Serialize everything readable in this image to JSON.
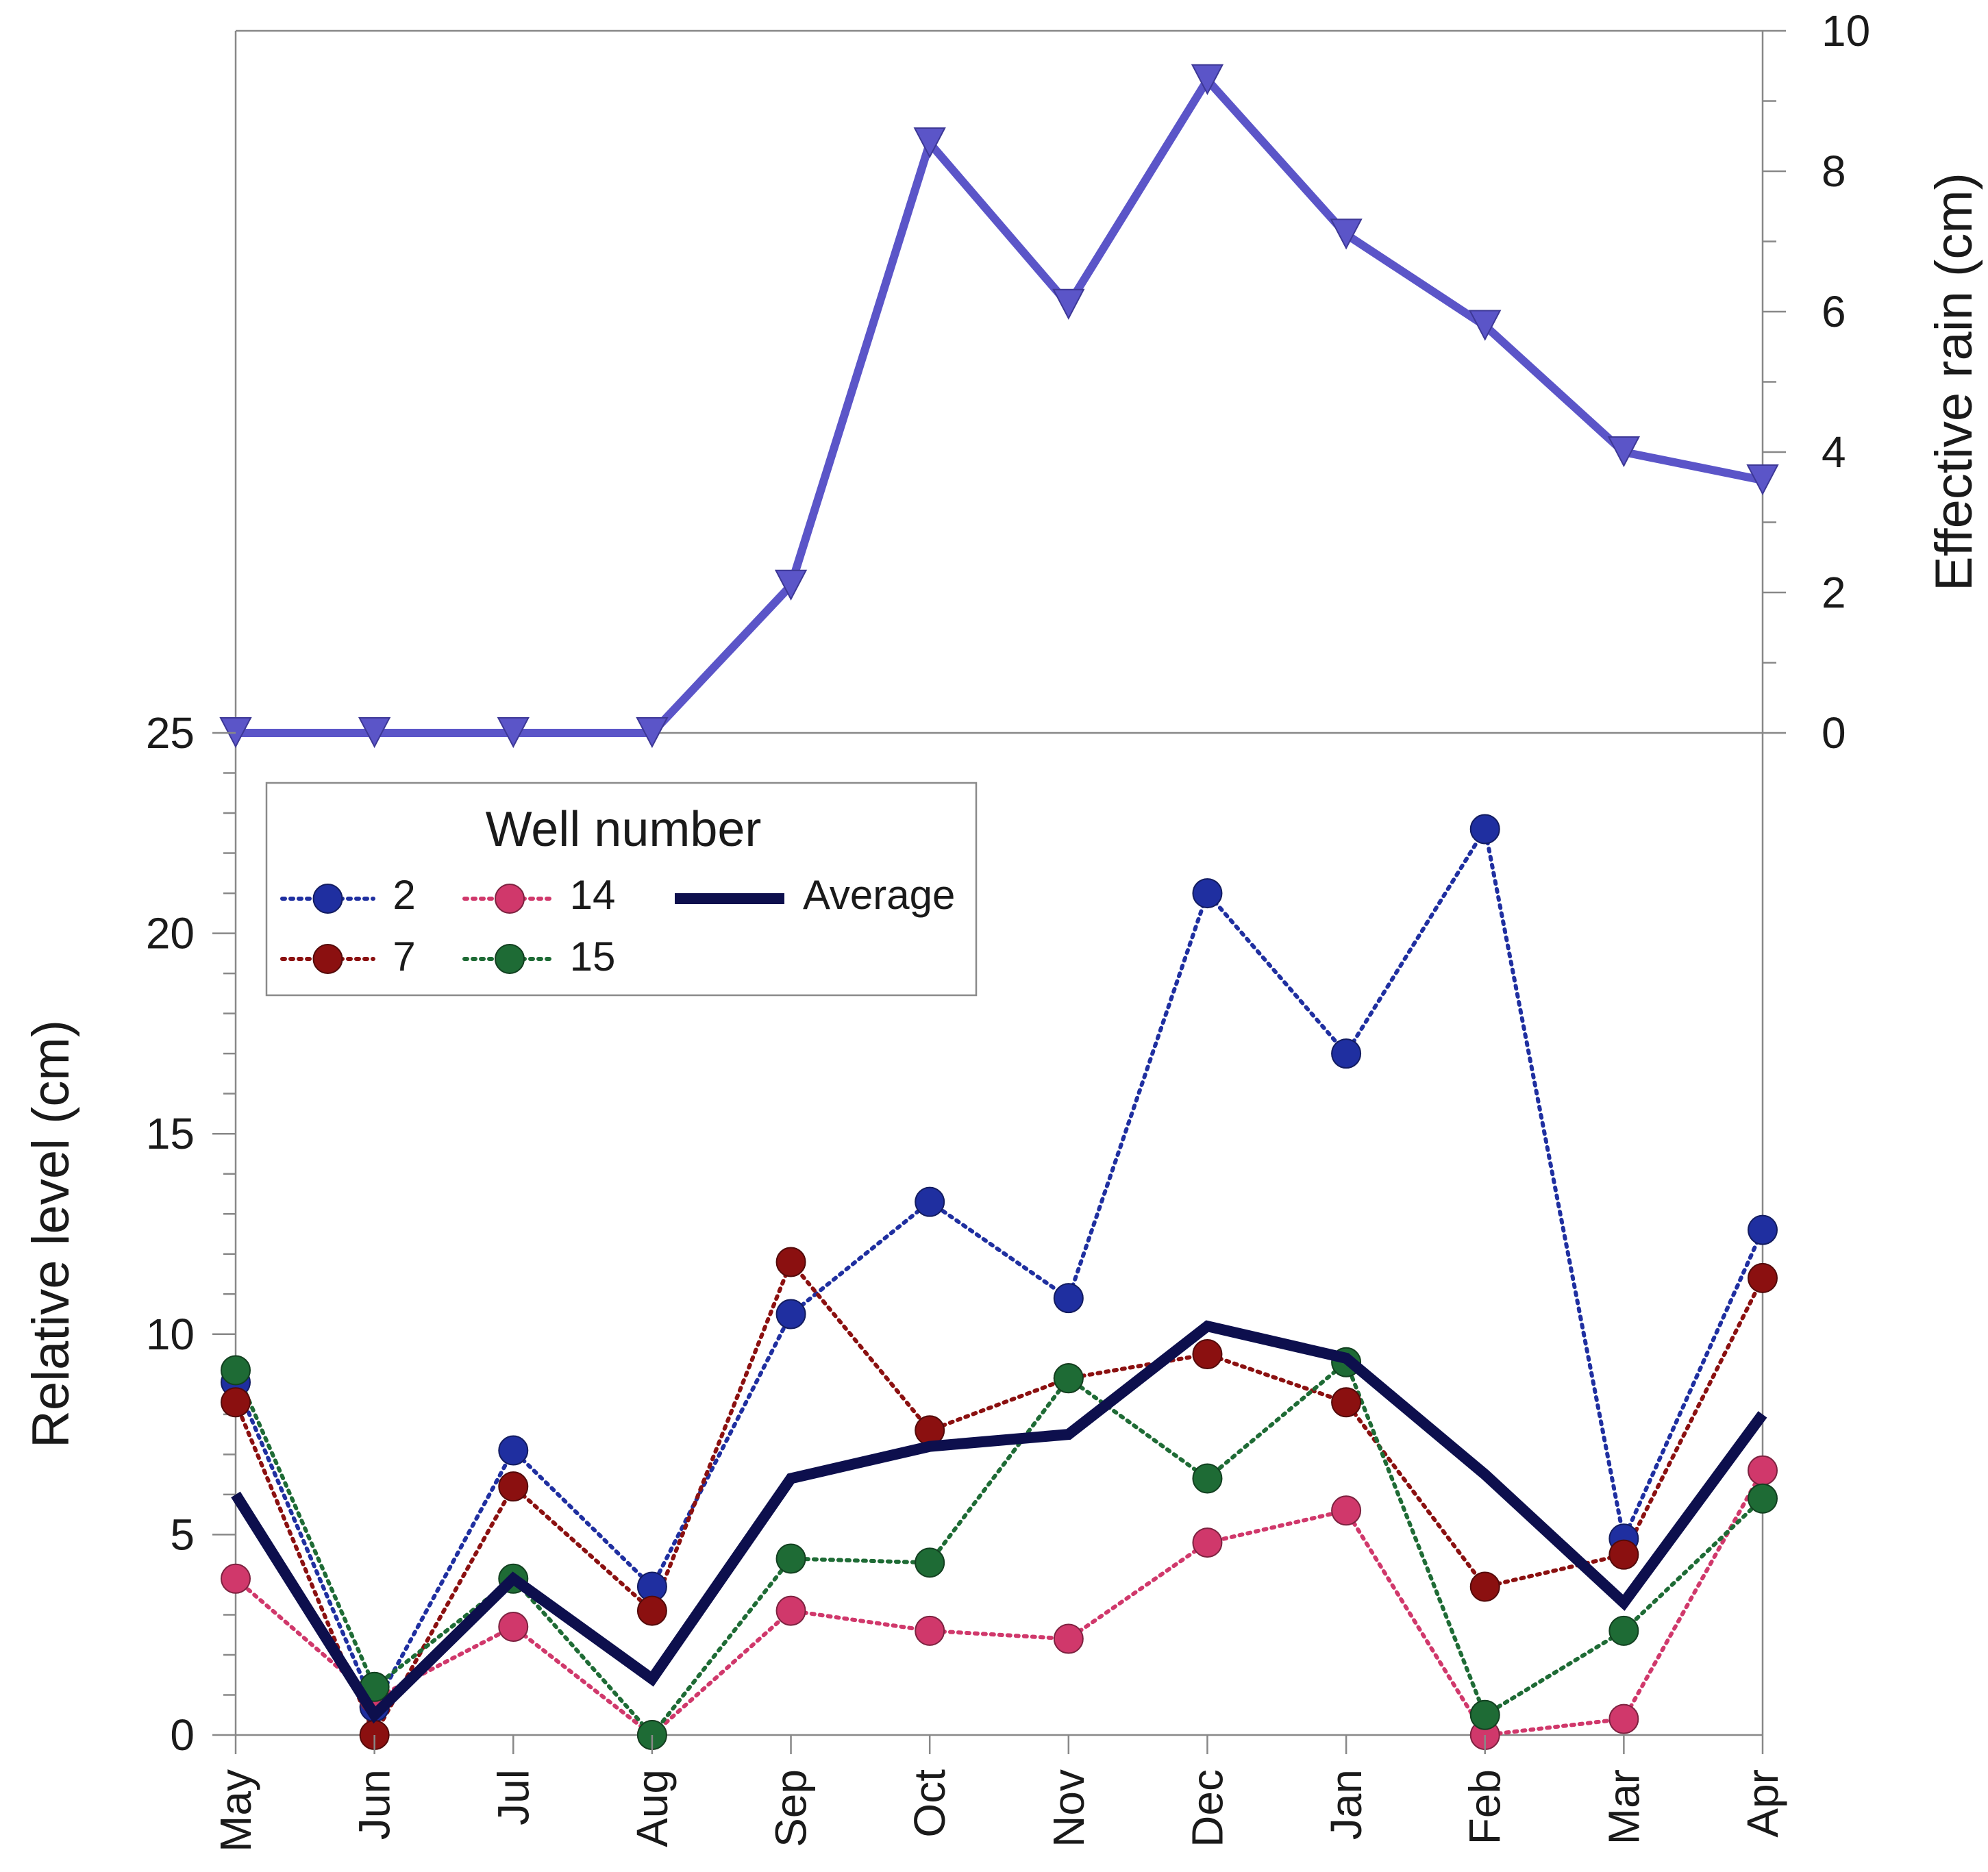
{
  "chart_data": [
    {
      "type": "line",
      "panel": "top",
      "categories": [
        "May",
        "Jun",
        "Jul",
        "Aug",
        "Sep",
        "Oct",
        "Nov",
        "Dec",
        "Jan",
        "Feb",
        "Mar",
        "Apr"
      ],
      "series": [
        {
          "name": "Effective rain",
          "color": "#5b55c8",
          "marker": "triangle-down",
          "values": [
            0,
            0,
            0,
            0,
            2.1,
            8.4,
            6.1,
            9.3,
            7.1,
            5.8,
            4.0,
            3.6
          ]
        }
      ],
      "ylabel": "Effective rain (cm)",
      "ylim": [
        0,
        10
      ],
      "yticks": [
        "0",
        "2",
        "4",
        "6",
        "8",
        "10"
      ],
      "axis_side": "right"
    },
    {
      "type": "line",
      "panel": "bottom",
      "categories": [
        "May",
        "Jun",
        "Jul",
        "Aug",
        "Sep",
        "Oct",
        "Nov",
        "Dec",
        "Jan",
        "Feb",
        "Mar",
        "Apr"
      ],
      "series": [
        {
          "name": "2",
          "color": "#1f2fa0",
          "style": "dotted",
          "values": [
            8.8,
            0.7,
            7.1,
            3.7,
            10.5,
            13.3,
            10.9,
            21.0,
            17.0,
            22.6,
            4.9,
            12.6
          ]
        },
        {
          "name": "7",
          "color": "#8b1010",
          "style": "dotted",
          "values": [
            8.3,
            0.0,
            6.2,
            3.1,
            11.8,
            7.6,
            8.9,
            9.5,
            8.3,
            3.7,
            4.5,
            11.4
          ]
        },
        {
          "name": "14",
          "color": "#d0386b",
          "style": "dotted",
          "values": [
            3.9,
            0.9,
            2.7,
            0.0,
            3.1,
            2.6,
            2.4,
            4.8,
            5.6,
            0.0,
            0.4,
            6.6
          ]
        },
        {
          "name": "15",
          "color": "#1e6b35",
          "style": "dotted",
          "values": [
            9.1,
            1.2,
            3.9,
            0.0,
            4.4,
            4.3,
            8.9,
            6.4,
            9.3,
            0.5,
            2.6,
            5.9
          ]
        },
        {
          "name": "Average",
          "color": "#0d0f4d",
          "style": "solid",
          "values": [
            6.0,
            0.5,
            3.9,
            1.4,
            6.4,
            7.2,
            7.5,
            10.2,
            9.4,
            6.5,
            3.3,
            8.0
          ]
        }
      ],
      "ylabel": "Relative level (cm)",
      "ylim": [
        0,
        25
      ],
      "yticks": [
        "0",
        "5",
        "10",
        "15",
        "20",
        "25"
      ],
      "xlabel": "",
      "legend": {
        "title": "Well number",
        "position": "top-left",
        "entries": [
          "2",
          "14",
          "Average",
          "7",
          "15"
        ]
      }
    }
  ]
}
